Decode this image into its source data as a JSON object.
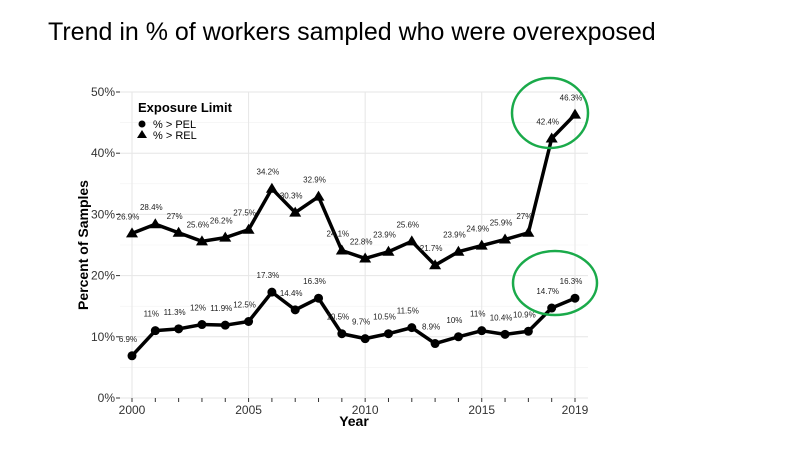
{
  "slide": {
    "title": "Trend in % of workers sampled who were overexposed"
  },
  "chart_data": {
    "type": "line",
    "title": "",
    "xlabel": "Year",
    "ylabel": "Percent of Samples",
    "x": [
      2000,
      2001,
      2002,
      2003,
      2004,
      2005,
      2006,
      2007,
      2008,
      2009,
      2010,
      2011,
      2012,
      2013,
      2014,
      2015,
      2016,
      2017,
      2018,
      2019
    ],
    "xticks": [
      "2000",
      "2005",
      "2010",
      "2015",
      "2019"
    ],
    "yticks": [
      "0%",
      "10%",
      "20%",
      "30%",
      "40%",
      "50%"
    ],
    "ylim": [
      0,
      50
    ],
    "grid": true,
    "legend": {
      "title": "Exposure Limit",
      "placement": "top-left"
    },
    "series": [
      {
        "name": "% > PEL",
        "marker": "circle",
        "values": [
          6.9,
          11,
          11.3,
          12,
          11.9,
          12.5,
          17.3,
          14.4,
          16.3,
          10.5,
          9.7,
          10.5,
          11.5,
          8.9,
          10,
          11,
          10.4,
          10.9,
          14.7,
          16.3
        ],
        "labels": [
          "6.9%",
          "11%",
          "11.3%",
          "12%",
          "11.9%",
          "12.5%",
          "17.3%",
          "14.4%",
          "16.3%",
          "10.5%",
          "9.7%",
          "10.5%",
          "11.5%",
          "8.9%",
          "10%",
          "11%",
          "10.4%",
          "10.9%",
          "14.7%",
          "16.3%"
        ]
      },
      {
        "name": "% > REL",
        "marker": "triangle",
        "values": [
          26.9,
          28.4,
          27,
          25.6,
          26.2,
          27.5,
          34.2,
          30.3,
          32.9,
          24.1,
          22.8,
          23.9,
          25.6,
          21.7,
          23.9,
          24.9,
          25.9,
          27,
          42.4,
          46.3
        ],
        "labels": [
          "26.9%",
          "28.4%",
          "27%",
          "25.6%",
          "26.2%",
          "27.5%",
          "34.2%",
          "30.3%",
          "32.9%",
          "24.1%",
          "22.8%",
          "23.9%",
          "25.6%",
          "21.7%",
          "23.9%",
          "24.9%",
          "25.9%",
          "27%",
          "42.4%",
          "46.3%"
        ]
      }
    ],
    "annotations": [
      {
        "type": "ellipse",
        "color": "#1aaa4a",
        "around": "% > REL 2018-2019"
      },
      {
        "type": "ellipse",
        "color": "#1aaa4a",
        "around": "% > PEL 2018-2019"
      }
    ]
  }
}
